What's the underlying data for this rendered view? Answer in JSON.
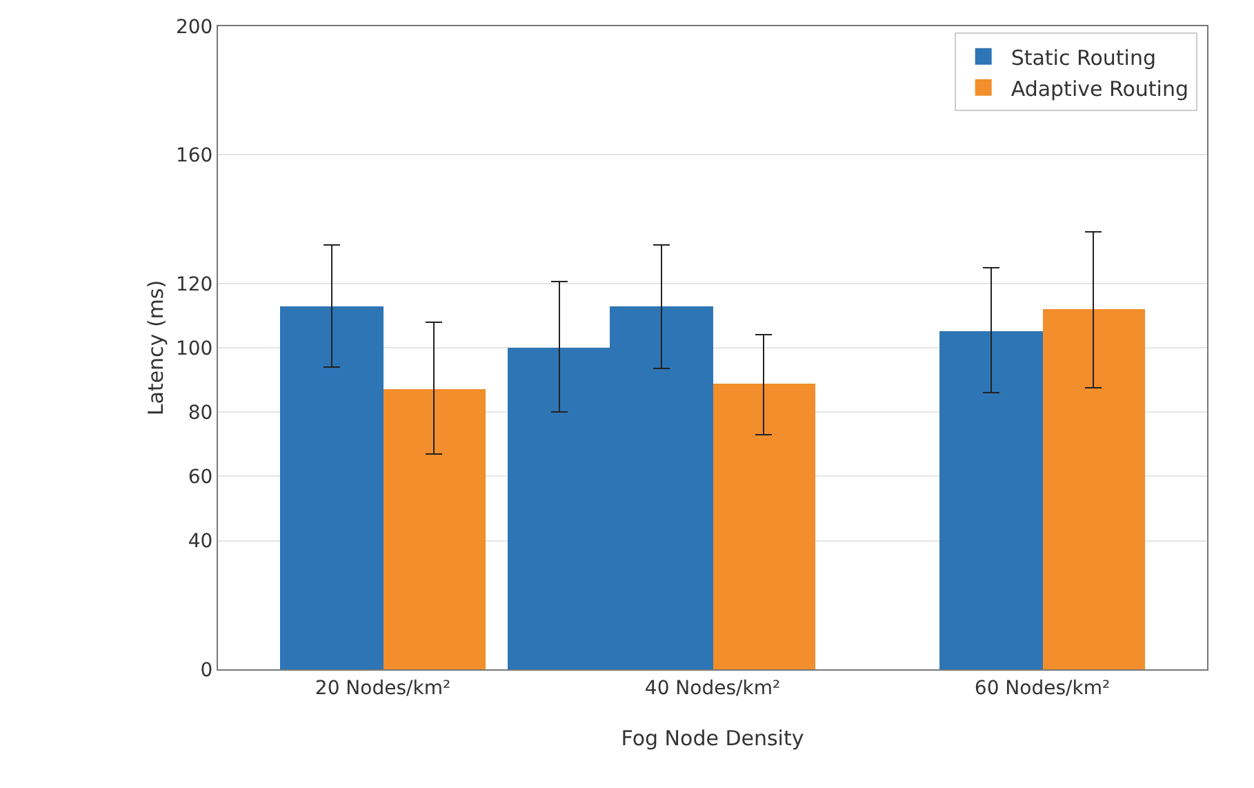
{
  "chart_data": {
    "type": "bar",
    "xlabel": "Fog Node Density",
    "ylabel": "Latency (ms)",
    "categories": [
      "20 Nodes/km²",
      "40 Nodes/km²",
      "60 Nodes/km²"
    ],
    "series": [
      {
        "name": "Static Routing",
        "color": "#2e75b6",
        "values": [
          113,
          113,
          105
        ],
        "errors": [
          [
            94,
            132
          ],
          [
            93.5,
            132
          ],
          [
            86,
            125
          ]
        ]
      },
      {
        "name": "Adaptive Routing",
        "color": "#f28e2b",
        "values": [
          87,
          89,
          112
        ],
        "errors": [
          [
            67,
            108
          ],
          [
            73,
            104
          ],
          [
            87.5,
            136
          ]
        ]
      },
      {
        "color": "#2e75b6",
        "values": [
          null,
          100,
          null
        ],
        "errors": [
          null,
          [
            80,
            120.5
          ],
          null
        ]
      }
    ],
    "ylim": [
      0,
      200
    ],
    "yticks": [
      0,
      40,
      60,
      80,
      100,
      120,
      160,
      200
    ],
    "grid": "y",
    "legend": "top right"
  }
}
